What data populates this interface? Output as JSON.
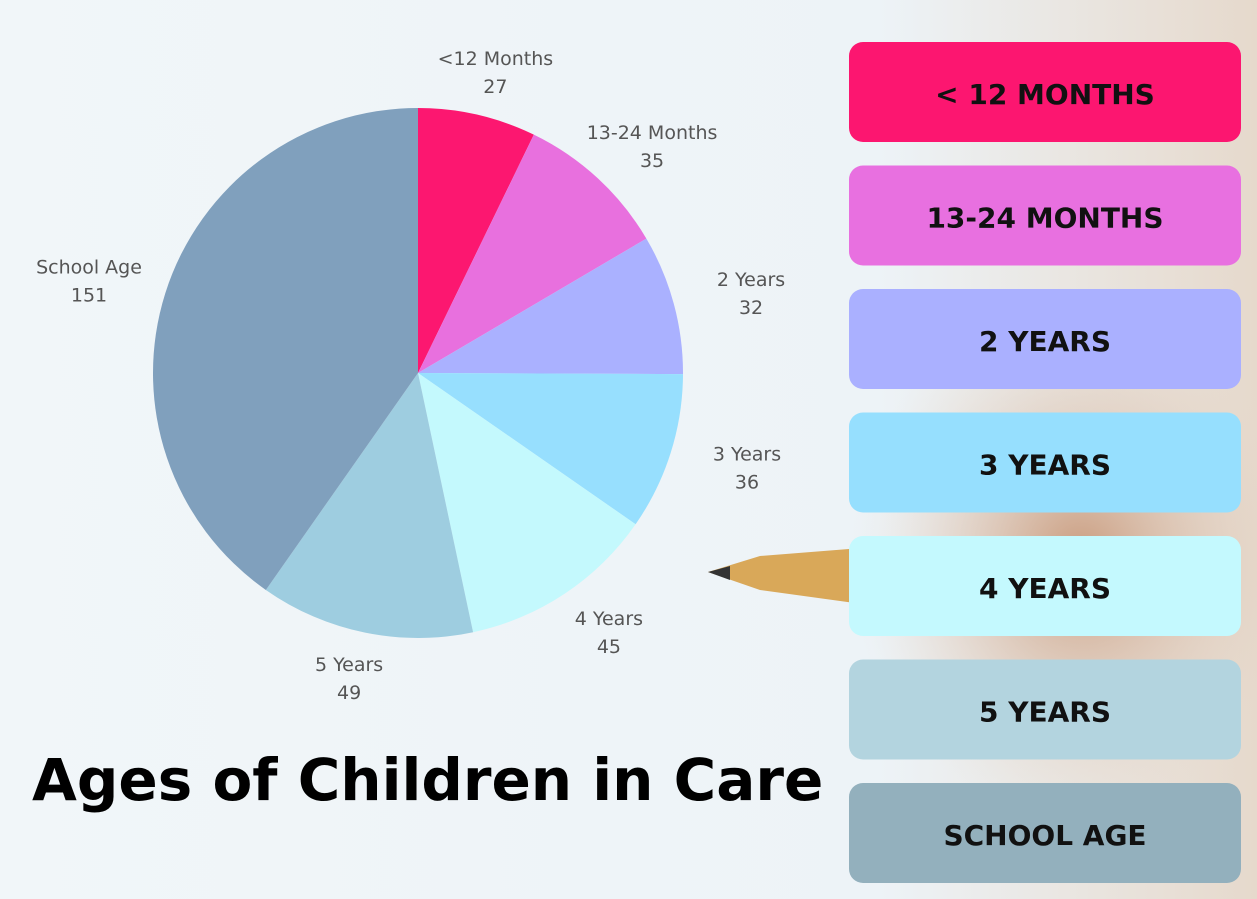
{
  "chart_data": {
    "type": "pie",
    "title": "Ages of Children in Care",
    "categories": [
      "<12 Months",
      "13-24 Months",
      "2 Years",
      "3 Years",
      "4 Years",
      "5 Years",
      "School Age"
    ],
    "values": [
      27,
      35,
      32,
      36,
      45,
      49,
      151
    ],
    "colors": [
      "#fc1770",
      "#e870de",
      "#aab1ff",
      "#97dffe",
      "#c4f9fd",
      "#9ecde0",
      "#80a0bd"
    ],
    "legend_labels": [
      "< 12 MONTHS",
      "13-24 MONTHS",
      "2 YEARS",
      "3 YEARS",
      "4 YEARS",
      "5 YEARS",
      "SCHOOL AGE"
    ],
    "legend_colors": [
      "#fc1670",
      "#e870e0",
      "#aab0ff",
      "#96dffe",
      "#c4f9fe",
      "#b3d4df",
      "#93b0bd"
    ]
  }
}
